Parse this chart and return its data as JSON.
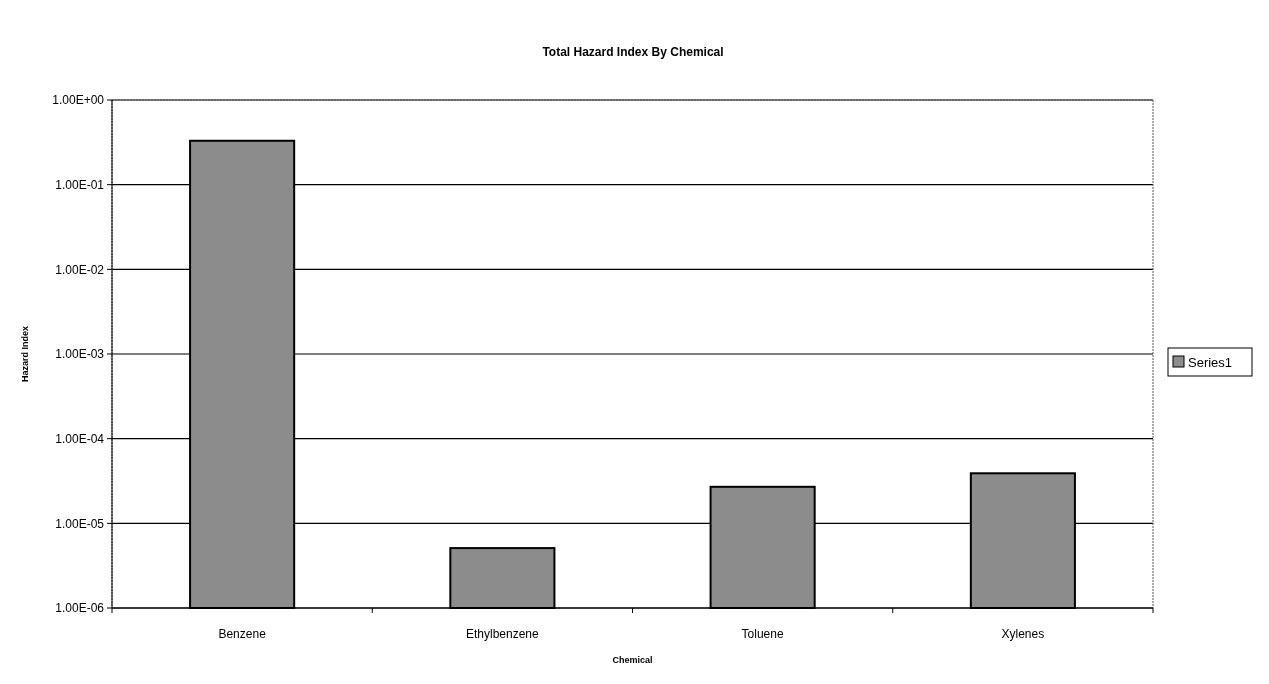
{
  "chart_data": {
    "type": "bar",
    "title": "Total Hazard Index By Chemical",
    "xlabel": "Chemical",
    "ylabel": "Hazard Index",
    "categories": [
      "Benzene",
      "Ethylbenzene",
      "Toluene",
      "Xylenes"
    ],
    "series": [
      {
        "name": "Series1",
        "color": "#8c8c8c",
        "values": [
          0.33,
          5.1e-06,
          2.7e-05,
          3.9e-05
        ]
      }
    ],
    "log": true,
    "ylim": [
      1e-06,
      1
    ],
    "yticks": [
      {
        "value": 1e-06,
        "label": "1.00E-06"
      },
      {
        "value": 1e-05,
        "label": "1.00E-05"
      },
      {
        "value": 0.0001,
        "label": "1.00E-04"
      },
      {
        "value": 0.001,
        "label": "1.00E-03"
      },
      {
        "value": 0.01,
        "label": "1.00E-02"
      },
      {
        "value": 0.1,
        "label": "1.00E-01"
      },
      {
        "value": 1,
        "label": "1.00E+00"
      }
    ],
    "grid": "y",
    "legend": "right"
  }
}
